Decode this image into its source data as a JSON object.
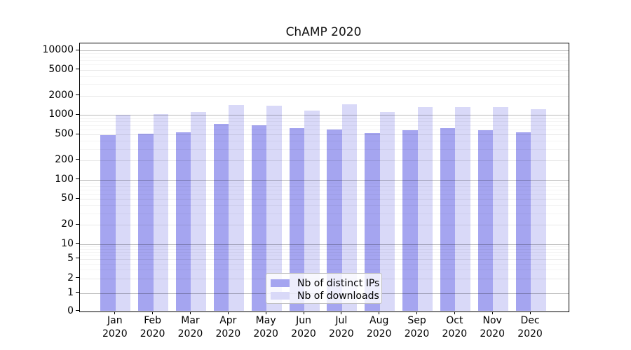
{
  "title": "ChAMP 2020",
  "year": "2020",
  "colors": {
    "distinct_ips": "#a5a5f0",
    "downloads": "#d9d9f8",
    "axis": "#000000"
  },
  "legend": {
    "items": [
      {
        "label": "Nb of distinct IPs",
        "color": "#a5a5f0"
      },
      {
        "label": "Nb of downloads",
        "color": "#d9d9f8"
      }
    ]
  },
  "chart_data": {
    "type": "bar",
    "title": "ChAMP 2020",
    "categories": [
      "Jan",
      "Feb",
      "Mar",
      "Apr",
      "May",
      "Jun",
      "Jul",
      "Aug",
      "Sep",
      "Oct",
      "Nov",
      "Dec"
    ],
    "year": "2020",
    "series": [
      {
        "name": "Nb of distinct IPs",
        "color": "#a5a5f0",
        "values": [
          490,
          510,
          540,
          720,
          700,
          635,
          590,
          525,
          580,
          620,
          580,
          540
        ]
      },
      {
        "name": "Nb of downloads",
        "color": "#d9d9f8",
        "values": [
          1010,
          1040,
          1110,
          1440,
          1400,
          1160,
          1460,
          1110,
          1330,
          1310,
          1310,
          1240
        ]
      }
    ],
    "yscale": "log-with-zero",
    "y_ticks": [
      10000,
      5000,
      2000,
      1000,
      500,
      200,
      100,
      50,
      20,
      10,
      5,
      2,
      1,
      0
    ],
    "ylim": [
      0,
      13000
    ],
    "grid": true,
    "legend_position": "lower center",
    "xlabel": "",
    "ylabel": ""
  }
}
